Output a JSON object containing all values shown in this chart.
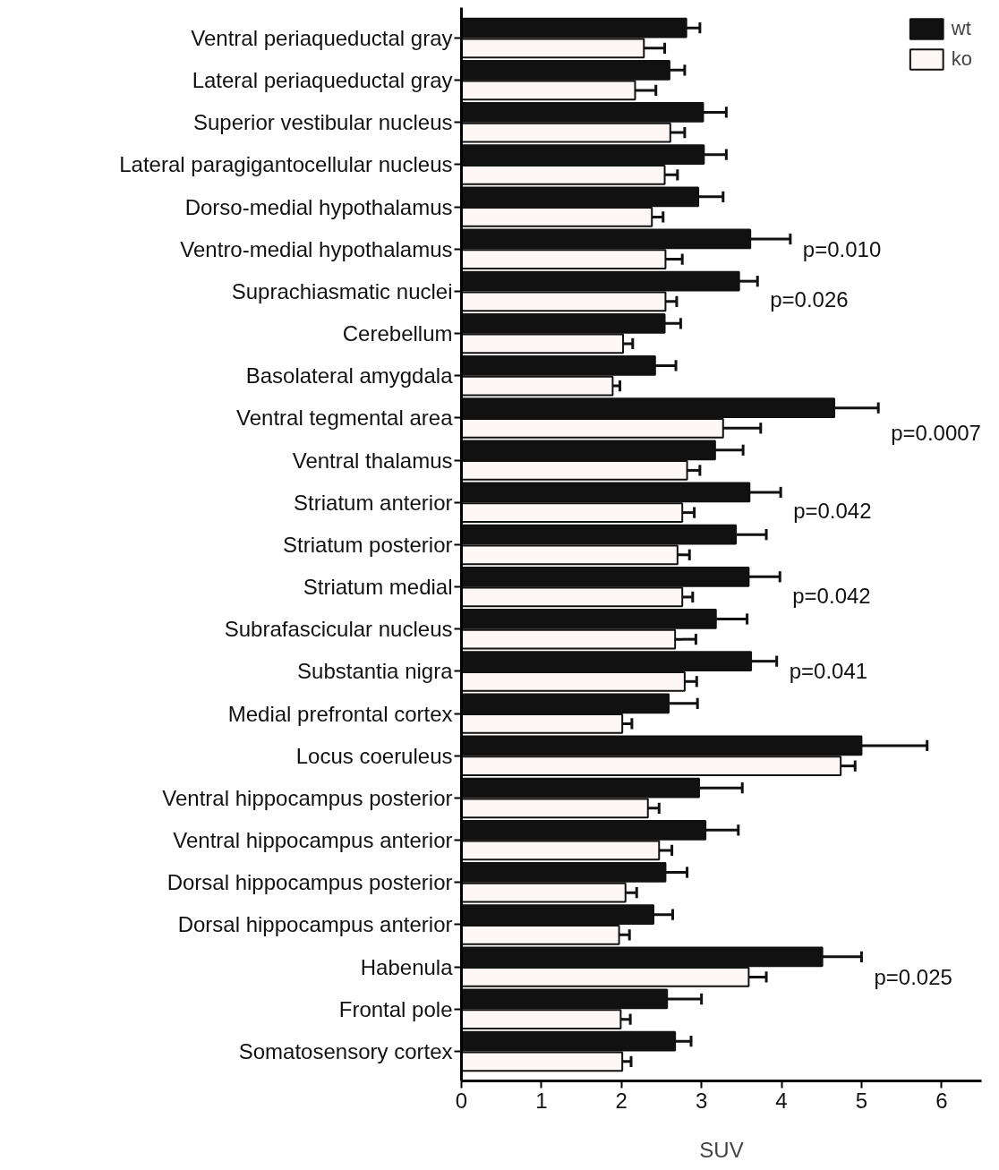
{
  "chart_data": {
    "type": "bar",
    "orientation": "horizontal",
    "xlabel": "SUV",
    "categories": [
      "Ventral periaqueductal gray",
      "Lateral periaqueductal gray",
      "Superior vestibular nucleus",
      "Lateral paragigantocellular nucleus",
      "Dorso-medial hypothalamus",
      "Ventro-medial hypothalamus",
      "Suprachiasmatic nuclei",
      "Cerebellum",
      "Basolateral amygdala",
      "Ventral tegmental area",
      "Ventral thalamus",
      "Striatum anterior",
      "Striatum posterior",
      "Striatum medial",
      "Subrafascicular nucleus",
      "Substantia nigra",
      "Medial prefrontal cortex",
      "Locus coeruleus",
      "Ventral hippocampus posterior",
      "Ventral hippocampus anterior",
      "Dorsal hippocampus posterior",
      "Dorsal hippocampus anterior",
      "Habenula",
      "Frontal pole",
      "Somatosensory cortex"
    ],
    "series": [
      {
        "name": "wt",
        "color": "#111111",
        "values": [
          2.81,
          2.6,
          3.02,
          3.03,
          2.96,
          3.61,
          3.47,
          2.54,
          2.42,
          4.66,
          3.17,
          3.6,
          3.43,
          3.59,
          3.18,
          3.62,
          2.59,
          5.0,
          2.97,
          3.05,
          2.55,
          2.4,
          4.51,
          2.57,
          2.67
        ],
        "errors": [
          [
            2.81,
            2.98
          ],
          [
            2.6,
            2.79
          ],
          [
            3.02,
            3.31
          ],
          [
            3.03,
            3.31
          ],
          [
            2.96,
            3.27
          ],
          [
            3.61,
            4.11
          ],
          [
            3.47,
            3.7
          ],
          [
            2.54,
            2.74
          ],
          [
            2.42,
            2.68
          ],
          [
            4.66,
            5.21
          ],
          [
            3.17,
            3.52
          ],
          [
            3.6,
            3.99
          ],
          [
            3.43,
            3.81
          ],
          [
            3.59,
            3.98
          ],
          [
            3.18,
            3.57
          ],
          [
            3.62,
            3.94
          ],
          [
            2.59,
            2.95
          ],
          [
            5.0,
            5.82
          ],
          [
            2.97,
            3.51
          ],
          [
            3.05,
            3.46
          ],
          [
            2.55,
            2.82
          ],
          [
            2.4,
            2.64
          ],
          [
            4.51,
            5.0
          ],
          [
            2.57,
            3.0
          ],
          [
            2.67,
            2.87
          ]
        ]
      },
      {
        "name": "ko",
        "color": "#fdf8f6",
        "values": [
          2.28,
          2.17,
          2.61,
          2.54,
          2.38,
          2.55,
          2.55,
          2.02,
          1.89,
          3.27,
          2.82,
          2.76,
          2.7,
          2.76,
          2.67,
          2.79,
          2.01,
          4.74,
          2.33,
          2.47,
          2.05,
          1.97,
          3.59,
          1.99,
          2.01
        ],
        "errors": [
          [
            2.28,
            2.54
          ],
          [
            2.17,
            2.43
          ],
          [
            2.61,
            2.79
          ],
          [
            2.54,
            2.7
          ],
          [
            2.38,
            2.52
          ],
          [
            2.55,
            2.76
          ],
          [
            2.55,
            2.69
          ],
          [
            2.02,
            2.14
          ],
          [
            1.89,
            1.98
          ],
          [
            3.27,
            3.74
          ],
          [
            2.82,
            2.98
          ],
          [
            2.76,
            2.91
          ],
          [
            2.7,
            2.85
          ],
          [
            2.76,
            2.89
          ],
          [
            2.67,
            2.93
          ],
          [
            2.79,
            2.94
          ],
          [
            2.01,
            2.13
          ],
          [
            4.74,
            4.92
          ],
          [
            2.33,
            2.47
          ],
          [
            2.47,
            2.63
          ],
          [
            2.05,
            2.19
          ],
          [
            1.97,
            2.1
          ],
          [
            3.59,
            3.81
          ],
          [
            1.99,
            2.11
          ],
          [
            2.01,
            2.12
          ]
        ]
      }
    ],
    "xlim": [
      0,
      6.5
    ],
    "xticks": [
      0,
      1,
      2,
      3,
      4,
      5,
      6
    ],
    "grid": false,
    "legend": "top right",
    "annotations": [
      "p=0.010",
      "p=0.026",
      "p=0.0007",
      "p=0.042",
      "p=0.042",
      "p=0.041",
      "p=0.025"
    ]
  }
}
